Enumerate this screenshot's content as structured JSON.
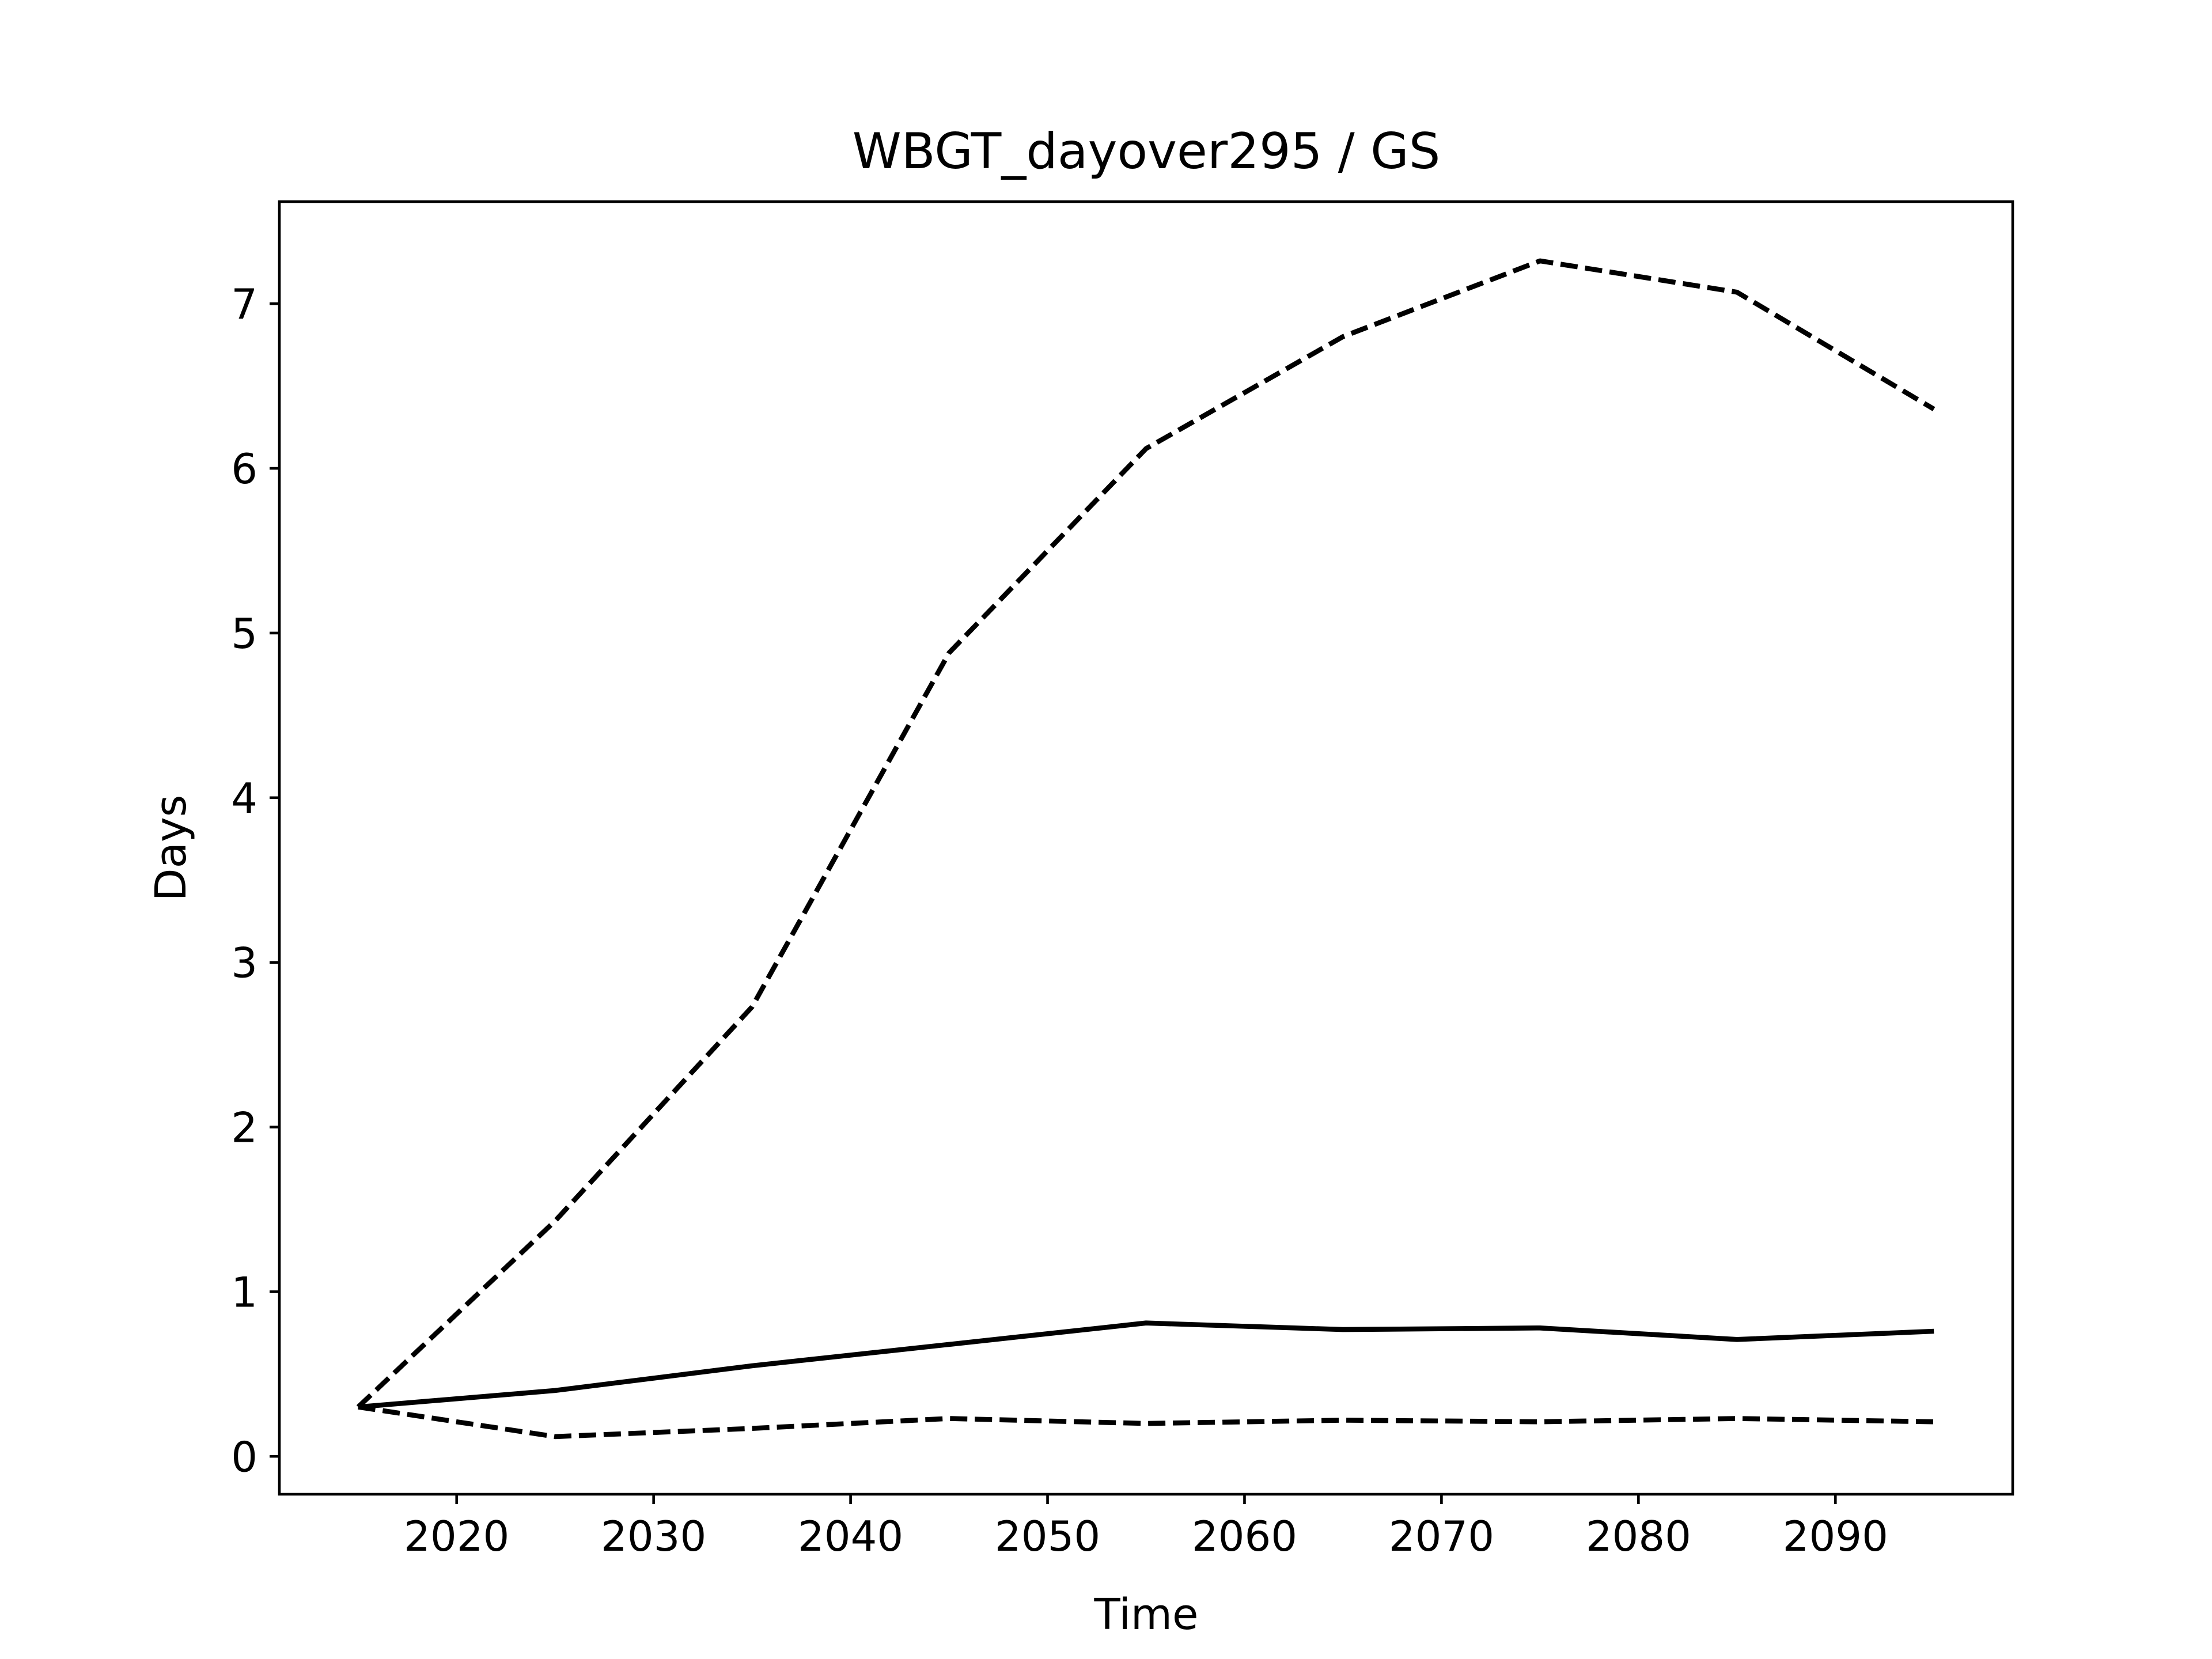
{
  "chart_data": {
    "type": "line",
    "title": "WBGT_dayover295 / GS",
    "xlabel": "Time",
    "ylabel": "Days",
    "xlim": [
      2011,
      2099
    ],
    "ylim": [
      -0.23,
      7.62
    ],
    "x": [
      2015,
      2025,
      2035,
      2045,
      2055,
      2065,
      2075,
      2085,
      2095
    ],
    "xticks": [
      2020,
      2030,
      2040,
      2050,
      2060,
      2070,
      2080,
      2090
    ],
    "yticks": [
      0,
      1,
      2,
      3,
      4,
      5,
      6,
      7
    ],
    "grid": false,
    "legend": "none",
    "series": [
      {
        "style": "solid",
        "color": "#000000",
        "values": [
          0.3,
          0.4,
          0.55,
          0.68,
          0.81,
          0.77,
          0.78,
          0.71,
          0.76
        ]
      },
      {
        "style": "dashed",
        "color": "#000000",
        "values": [
          0.3,
          1.43,
          2.73,
          4.88,
          6.12,
          6.8,
          7.26,
          7.07,
          6.36
        ]
      },
      {
        "style": "dashed",
        "color": "#000000",
        "values": [
          0.3,
          0.12,
          0.17,
          0.23,
          0.2,
          0.22,
          0.21,
          0.23,
          0.21
        ]
      }
    ]
  }
}
